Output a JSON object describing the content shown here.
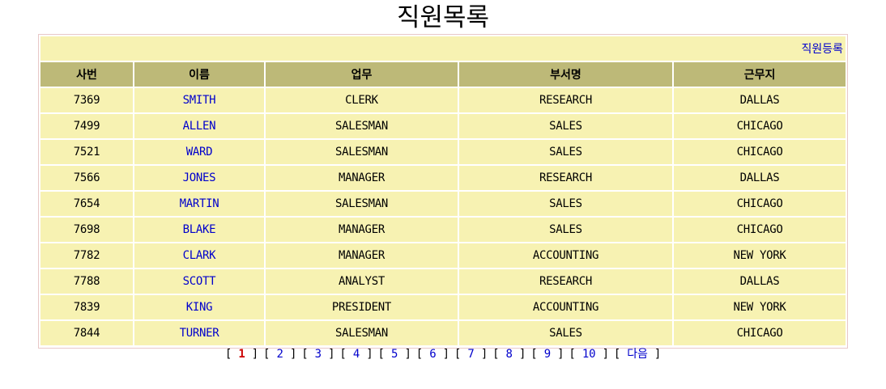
{
  "page": {
    "title": "직원목록"
  },
  "actions": {
    "register_label": "직원등록"
  },
  "table": {
    "columns": [
      "사번",
      "이름",
      "업무",
      "부서명",
      "근무지"
    ],
    "rows": [
      [
        "7369",
        "SMITH",
        "CLERK",
        "RESEARCH",
        "DALLAS"
      ],
      [
        "7499",
        "ALLEN",
        "SALESMAN",
        "SALES",
        "CHICAGO"
      ],
      [
        "7521",
        "WARD",
        "SALESMAN",
        "SALES",
        "CHICAGO"
      ],
      [
        "7566",
        "JONES",
        "MANAGER",
        "RESEARCH",
        "DALLAS"
      ],
      [
        "7654",
        "MARTIN",
        "SALESMAN",
        "SALES",
        "CHICAGO"
      ],
      [
        "7698",
        "BLAKE",
        "MANAGER",
        "SALES",
        "CHICAGO"
      ],
      [
        "7782",
        "CLARK",
        "MANAGER",
        "ACCOUNTING",
        "NEW YORK"
      ],
      [
        "7788",
        "SCOTT",
        "ANALYST",
        "RESEARCH",
        "DALLAS"
      ],
      [
        "7839",
        "KING",
        "PRESIDENT",
        "ACCOUNTING",
        "NEW YORK"
      ],
      [
        "7844",
        "TURNER",
        "SALESMAN",
        "SALES",
        "CHICAGO"
      ]
    ]
  },
  "pagination": {
    "current": "1",
    "pages": [
      "1",
      "2",
      "3",
      "4",
      "5",
      "6",
      "7",
      "8",
      "9",
      "10"
    ],
    "next_label": "다음"
  },
  "colors": {
    "header_bg": "#bdb978",
    "row_bg": "#f7f2b2",
    "link": "#0000cc",
    "current_page": "#cc0000",
    "frame_border": "#e8c8c8"
  }
}
